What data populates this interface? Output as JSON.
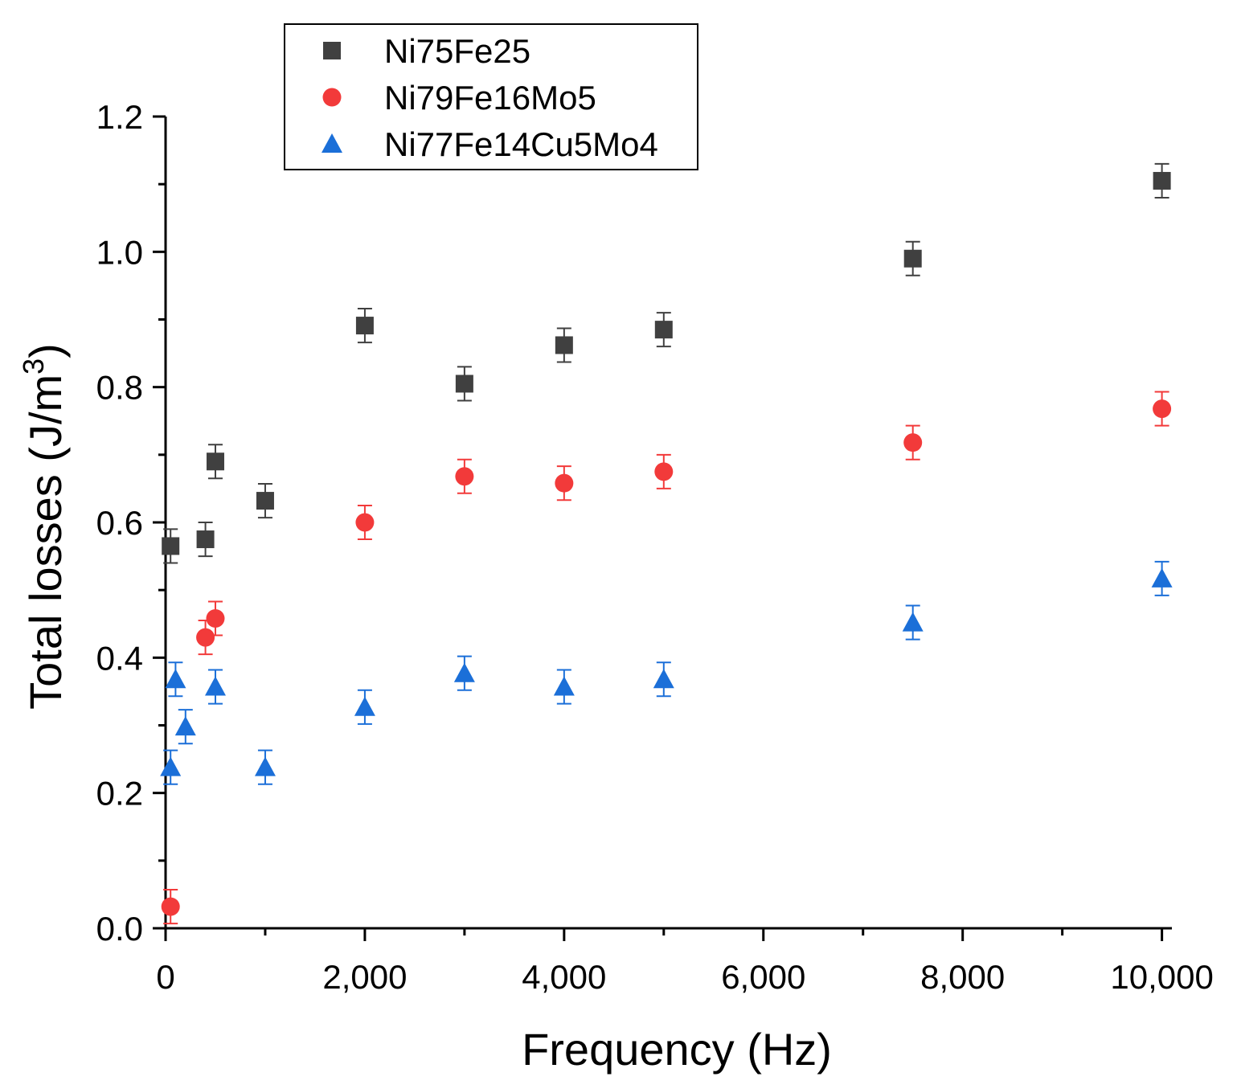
{
  "chart_data": {
    "type": "scatter",
    "title": "",
    "xlabel": "Frequency (Hz)",
    "ylabel_main": "Total losses (J/m",
    "ylabel_sup": "3",
    "ylabel_close": ")",
    "xlim": [
      0,
      10100
    ],
    "ylim": [
      0,
      1.2
    ],
    "xticks": [
      0,
      2000,
      4000,
      6000,
      8000,
      10000
    ],
    "xtick_labels": [
      "0",
      "2,000",
      "4,000",
      "6,000",
      "8,000",
      "10,000"
    ],
    "xminor": [
      1000,
      3000,
      5000,
      7000,
      9000
    ],
    "yticks": [
      0,
      0.2,
      0.4,
      0.6,
      0.8,
      1.0,
      1.2
    ],
    "ytick_labels": [
      "0.0",
      "0.2",
      "0.4",
      "0.6",
      "0.8",
      "1.0",
      "1.2"
    ],
    "yminor": [
      0.1,
      0.3,
      0.5,
      0.7,
      0.9,
      1.1
    ],
    "grid": false,
    "legend_position": "top-left",
    "series": [
      {
        "name": "Ni75Fe25",
        "marker": "square",
        "color": "#404040",
        "x": [
          50,
          400,
          500,
          1000,
          2000,
          3000,
          4000,
          5000,
          7500,
          10000
        ],
        "y": [
          0.565,
          0.575,
          0.69,
          0.632,
          0.891,
          0.805,
          0.862,
          0.885,
          0.99,
          1.105
        ],
        "err": [
          0.025,
          0.025,
          0.025,
          0.025,
          0.025,
          0.025,
          0.025,
          0.025,
          0.025,
          0.025
        ]
      },
      {
        "name": "Ni79Fe16Mo5",
        "marker": "circle",
        "color": "#f23a3a",
        "x": [
          50,
          400,
          500,
          2000,
          3000,
          4000,
          5000,
          7500,
          10000
        ],
        "y": [
          0.032,
          0.43,
          0.458,
          0.6,
          0.668,
          0.658,
          0.675,
          0.718,
          0.768
        ],
        "err": [
          0.025,
          0.025,
          0.025,
          0.025,
          0.025,
          0.025,
          0.025,
          0.025,
          0.025
        ]
      },
      {
        "name": "Ni77Fe14Cu5Mo4",
        "marker": "triangle",
        "color": "#1b6fd8",
        "x": [
          50,
          100,
          200,
          500,
          1000,
          2000,
          3000,
          4000,
          5000,
          7500,
          10000
        ],
        "y": [
          0.238,
          0.368,
          0.298,
          0.357,
          0.238,
          0.327,
          0.377,
          0.357,
          0.368,
          0.452,
          0.517
        ],
        "err": [
          0.025,
          0.025,
          0.025,
          0.025,
          0.025,
          0.025,
          0.025,
          0.025,
          0.025,
          0.025,
          0.025
        ]
      }
    ]
  }
}
